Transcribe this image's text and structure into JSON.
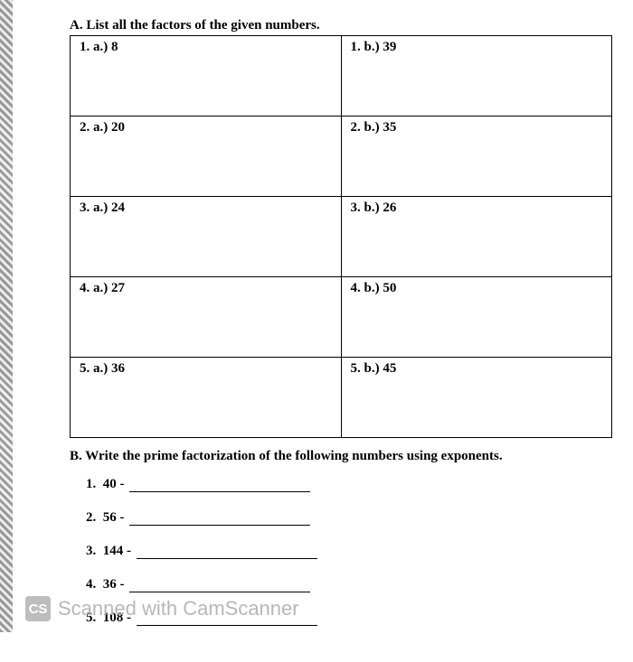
{
  "sectionA": {
    "heading": "A.  List all the factors of the given numbers.",
    "rows": [
      {
        "left": "1.  a.) 8",
        "right": "1.  b.) 39"
      },
      {
        "left": "2.  a.) 20",
        "right": "2. b.) 35"
      },
      {
        "left": "3.  a.) 24",
        "right": "3. b.) 26"
      },
      {
        "left": "4.  a.) 27",
        "right": "4. b.) 50"
      },
      {
        "left": "5.  a.) 36",
        "right": "5. b.) 45"
      }
    ]
  },
  "sectionB": {
    "heading": "B.  Write the prime factorization of the following numbers using exponents.",
    "items": [
      "1.  40 - ",
      "2.  56 - ",
      "3.  144 - ",
      "4.  36 - ",
      "5.  108 - "
    ]
  },
  "watermark": {
    "badge": "CS",
    "text": "Scanned with CamScanner"
  }
}
